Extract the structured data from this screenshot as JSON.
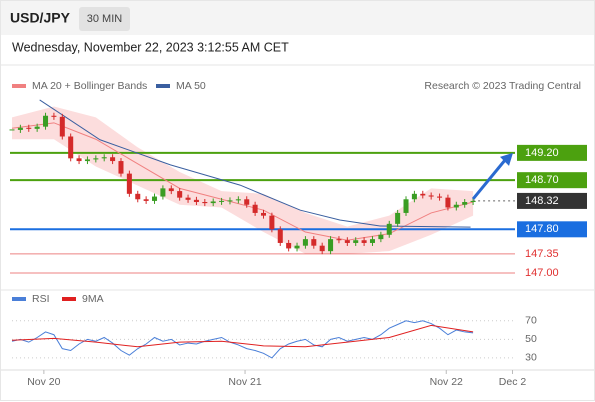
{
  "header": {
    "symbol": "USD/JPY",
    "interval": "30 MIN",
    "datetime": "Wednesday, November 22, 2023 3:12:55 AM CET"
  },
  "chart_data": [
    {
      "type": "candlestick",
      "credit": "Research © 2023 Trading Central",
      "xlim": [
        0,
        60
      ],
      "ylim": [
        146.78,
        150.26
      ],
      "x": [
        0,
        1,
        2,
        3,
        4,
        5,
        6,
        7,
        8,
        9,
        10,
        11,
        12,
        13,
        14,
        15,
        16,
        17,
        18,
        19,
        20,
        21,
        22,
        23,
        24,
        25,
        26,
        27,
        28,
        29,
        30,
        31,
        32,
        33,
        34,
        35,
        36,
        37,
        38,
        39,
        40,
        41,
        42,
        43,
        44,
        45,
        46,
        47,
        48,
        49,
        50,
        51,
        52,
        53,
        54,
        55
      ],
      "close": [
        149.62,
        149.66,
        149.64,
        149.68,
        149.88,
        149.86,
        149.5,
        149.1,
        149.05,
        149.08,
        149.1,
        149.12,
        149.05,
        148.82,
        148.45,
        148.35,
        148.32,
        148.4,
        148.55,
        148.5,
        148.38,
        148.34,
        148.3,
        148.28,
        148.31,
        148.32,
        148.33,
        148.35,
        148.25,
        148.1,
        148.05,
        147.8,
        147.55,
        147.45,
        147.5,
        147.62,
        147.5,
        147.4,
        147.62,
        147.6,
        147.55,
        147.6,
        147.55,
        147.62,
        147.7,
        147.9,
        148.1,
        148.35,
        148.45,
        148.42,
        148.4,
        148.38,
        148.2,
        148.25,
        148.3,
        148.32
      ],
      "up_color": "#3a9d23",
      "down_color": "#d42a2a",
      "series": [
        {
          "name": "MA 20 + Bollinger Bands",
          "color": "#f08080",
          "band_color": "#fbd5d5",
          "x": [
            0,
            5,
            10,
            15,
            20,
            25,
            30,
            35,
            40,
            45,
            50,
            55
          ],
          "values": [
            149.65,
            149.75,
            149.45,
            149.0,
            148.55,
            148.35,
            148.15,
            147.75,
            147.6,
            147.72,
            148.1,
            148.3
          ],
          "upper": [
            149.85,
            150.05,
            149.85,
            149.3,
            148.85,
            148.5,
            148.45,
            148.1,
            147.85,
            148.05,
            148.55,
            148.5
          ],
          "lower": [
            149.45,
            149.45,
            148.95,
            148.6,
            148.25,
            148.2,
            147.75,
            147.35,
            147.35,
            147.4,
            147.7,
            148.05
          ]
        },
        {
          "name": "MA 50",
          "color": "#3a5fa0",
          "x": [
            3.3,
            10.5,
            18.9,
            27.2,
            34.4,
            39.1,
            43.9,
            54.7
          ],
          "values": [
            150.17,
            149.44,
            148.98,
            148.61,
            148.15,
            147.97,
            147.86,
            147.84
          ]
        }
      ],
      "levels": [
        {
          "value": 149.2,
          "label": "149.20",
          "color": "#4ca10f",
          "boxed": true
        },
        {
          "value": 148.7,
          "label": "148.70",
          "color": "#4ca10f",
          "boxed": true
        },
        {
          "value": 148.32,
          "label": "148.32",
          "color": "#333333",
          "boxed": true
        },
        {
          "value": 147.8,
          "label": "147.80",
          "color": "#1a6ee0",
          "boxed": true
        },
        {
          "value": 147.35,
          "label": "147.35",
          "color": "#e03030",
          "boxed": false
        },
        {
          "value": 147.0,
          "label": "147.00",
          "color": "#e03030",
          "boxed": false
        }
      ]
    },
    {
      "type": "line",
      "xlim": [
        0,
        60
      ],
      "ylim": [
        17,
        87
      ],
      "yticks": [
        30,
        50,
        70
      ],
      "grid": true,
      "xticks": [
        {
          "value": 3.8,
          "label": "Nov 20"
        },
        {
          "value": 27.8,
          "label": "Nov 21"
        },
        {
          "value": 51.8,
          "label": "Nov 22"
        },
        {
          "value": 59.7,
          "label": "Dec 2"
        }
      ],
      "series": [
        {
          "name": "RSI",
          "color": "#4a7fd8",
          "x": [
            0,
            1,
            2,
            3,
            4,
            5,
            6,
            7,
            8,
            9,
            10,
            11,
            12,
            13,
            14,
            15,
            16,
            17,
            18,
            19,
            20,
            21,
            22,
            23,
            24,
            25,
            26,
            27,
            28,
            29,
            30,
            31,
            32,
            33,
            34,
            35,
            36,
            37,
            38,
            39,
            40,
            41,
            42,
            43,
            44,
            45,
            46,
            47,
            48,
            49,
            50,
            51,
            52,
            53,
            54,
            55
          ],
          "values": [
            48,
            50,
            47,
            52,
            58,
            55,
            40,
            38,
            45,
            50,
            48,
            52,
            46,
            38,
            33,
            40,
            45,
            52,
            48,
            50,
            44,
            46,
            45,
            48,
            50,
            52,
            47,
            44,
            40,
            38,
            35,
            30,
            40,
            45,
            48,
            50,
            44,
            42,
            50,
            52,
            48,
            50,
            52,
            50,
            55,
            62,
            66,
            70,
            68,
            70,
            67,
            62,
            55,
            60,
            58,
            57
          ]
        },
        {
          "name": "9MA",
          "color": "#e02020",
          "x": [
            0,
            5,
            10,
            15,
            20,
            25,
            30,
            35,
            40,
            45,
            50,
            55
          ],
          "values": [
            49,
            51,
            47,
            42,
            47,
            48,
            43,
            42,
            47,
            52,
            65,
            58
          ]
        }
      ]
    }
  ]
}
